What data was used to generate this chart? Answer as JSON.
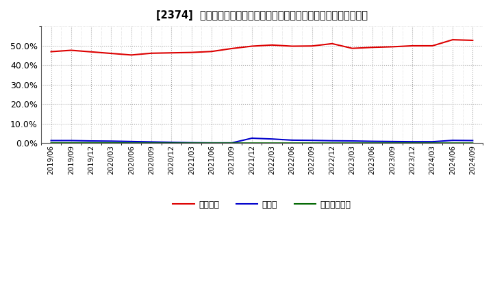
{
  "title": "[2374]  自己資本、のれん、繰延税金資産の総資産に対する比率の推移",
  "x_labels": [
    "2019/06",
    "2019/09",
    "2019/12",
    "2020/03",
    "2020/06",
    "2020/09",
    "2020/12",
    "2021/03",
    "2021/06",
    "2021/09",
    "2021/12",
    "2022/03",
    "2022/06",
    "2022/09",
    "2022/12",
    "2023/03",
    "2023/06",
    "2023/09",
    "2023/12",
    "2024/03",
    "2024/06",
    "2024/09"
  ],
  "equity": [
    0.469,
    0.476,
    0.468,
    0.46,
    0.452,
    0.461,
    0.463,
    0.465,
    0.47,
    0.485,
    0.497,
    0.503,
    0.497,
    0.498,
    0.51,
    0.486,
    0.491,
    0.494,
    0.499,
    0.499,
    0.53,
    0.527
  ],
  "noren": [
    0.014,
    0.014,
    0.012,
    0.011,
    0.009,
    0.007,
    0.005,
    0.003,
    0.002,
    0.002,
    0.026,
    0.022,
    0.016,
    0.015,
    0.013,
    0.012,
    0.01,
    0.009,
    0.008,
    0.008,
    0.015,
    0.014
  ],
  "deferred_tax": [
    0.002,
    0.002,
    0.002,
    0.002,
    0.001,
    0.001,
    0.001,
    0.001,
    0.001,
    0.001,
    0.001,
    0.001,
    0.001,
    0.001,
    0.001,
    0.001,
    0.001,
    0.001,
    0.001,
    0.001,
    0.001,
    0.001
  ],
  "equity_color": "#dd0000",
  "noren_color": "#0000cc",
  "deferred_tax_color": "#006600",
  "background_color": "#ffffff",
  "grid_color": "#aaaaaa",
  "ylim": [
    0.0,
    0.6
  ],
  "yticks": [
    0.0,
    0.1,
    0.2,
    0.3,
    0.4,
    0.5
  ],
  "legend_labels": [
    "自己資本",
    "のれん",
    "繰延税金資産"
  ]
}
